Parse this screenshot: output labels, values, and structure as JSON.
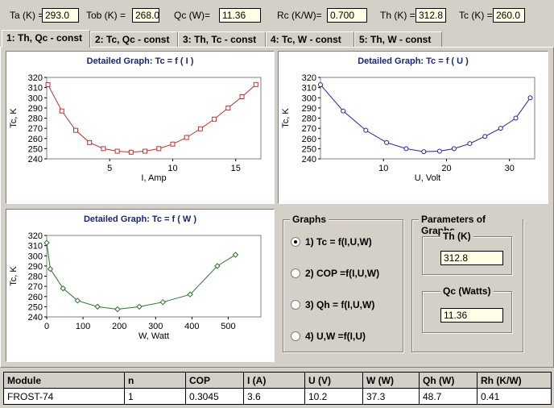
{
  "top": {
    "ta": {
      "label": "Ta (K) =",
      "value": "293.0"
    },
    "tob": {
      "label": "Tob (K) =",
      "value": "268.0"
    },
    "qc": {
      "label": "Qc (W)=",
      "value": "11.36"
    },
    "rc": {
      "label": "Rc (K/W)=",
      "value": "0.700"
    },
    "th": {
      "label": "Th (K) =",
      "value": "312.8"
    },
    "tc": {
      "label": "Tc (K) =",
      "value": "260.0"
    }
  },
  "tabs": [
    "1: Th, Qc - const",
    "2: Tc, Qc - const",
    "3: Th, Tc - const",
    "4: Tc,  W - const",
    "5: Th,  W - const"
  ],
  "chart_data": [
    {
      "type": "line",
      "title": "Detailed Graph: Tc = f ( I )",
      "xlabel": "I, Amp",
      "ylabel": "Tc, K",
      "xlim": [
        0,
        17
      ],
      "ylim": [
        240,
        320
      ],
      "xticks": [
        5,
        10,
        15
      ],
      "yticks": [
        240,
        250,
        260,
        270,
        280,
        290,
        300,
        310,
        320
      ],
      "color": "#c03030",
      "marker": "square",
      "x": [
        0.1,
        1.2,
        2.3,
        3.4,
        4.5,
        5.6,
        6.7,
        7.8,
        8.9,
        10.0,
        11.1,
        12.2,
        13.3,
        14.4,
        15.5,
        16.6
      ],
      "y": [
        312.8,
        287.0,
        268.0,
        256.0,
        250.0,
        247.5,
        246.5,
        247.5,
        250.0,
        254.5,
        261.0,
        269.5,
        279.0,
        290.0,
        301.0,
        313.0
      ]
    },
    {
      "type": "line",
      "title": "Detailed Graph: Tc = f ( U )",
      "xlabel": "U, Volt",
      "ylabel": "Tc, K",
      "xlim": [
        0,
        34
      ],
      "ylim": [
        240,
        320
      ],
      "xticks": [
        10,
        20,
        30
      ],
      "yticks": [
        240,
        250,
        260,
        270,
        280,
        290,
        300,
        310,
        320
      ],
      "color": "#2020a0",
      "marker": "circle",
      "x": [
        0,
        3.6,
        7.2,
        10.5,
        13.6,
        16.4,
        18.9,
        21.2,
        23.7,
        26.1,
        28.6,
        31.0,
        33.3
      ],
      "y": [
        312.8,
        287.0,
        268.0,
        256.0,
        250.0,
        247.0,
        247.5,
        250.0,
        255.0,
        262.0,
        270.0,
        280.0,
        300.0
      ]
    },
    {
      "type": "line",
      "title": "Detailed Graph: Tc = f ( W )",
      "xlabel": "W, Watt",
      "ylabel": "Tc, K",
      "xlim": [
        0,
        590
      ],
      "ylim": [
        240,
        320
      ],
      "xticks": [
        0,
        100,
        200,
        300,
        400,
        500
      ],
      "yticks": [
        240,
        250,
        260,
        270,
        280,
        290,
        300,
        310,
        320
      ],
      "color": "#307030",
      "marker": "diamond",
      "x": [
        0,
        10,
        45,
        85,
        140,
        195,
        255,
        320,
        395,
        470,
        520
      ],
      "y": [
        312.8,
        287.0,
        268.0,
        256.0,
        250.0,
        247.5,
        250.0,
        254.5,
        262.0,
        290.0,
        301.0
      ]
    }
  ],
  "graphs_group": {
    "title": "Graphs",
    "options": [
      "1) Tc = f(I,U,W)",
      "2) COP  =f(I,U,W)",
      "3) Qh = f(I,U,W)",
      "4) U,W  =f(I,U)"
    ],
    "selected": 0
  },
  "params_group": {
    "title": "Parameters of Graphs",
    "th_label": "Th  (K)",
    "th_value": "312.8",
    "qc_label": "Qc (Watts)",
    "qc_value": "11.36"
  },
  "results": {
    "headers": [
      "Module",
      "n",
      "COP",
      "I (A)",
      "U (V)",
      "W (W)",
      "Qh (W)",
      "Rh (K/W)"
    ],
    "row": [
      "FROST-74",
      "1",
      "0.3045",
      "3.6",
      "10.2",
      "37.3",
      "48.7",
      "0.41"
    ]
  }
}
